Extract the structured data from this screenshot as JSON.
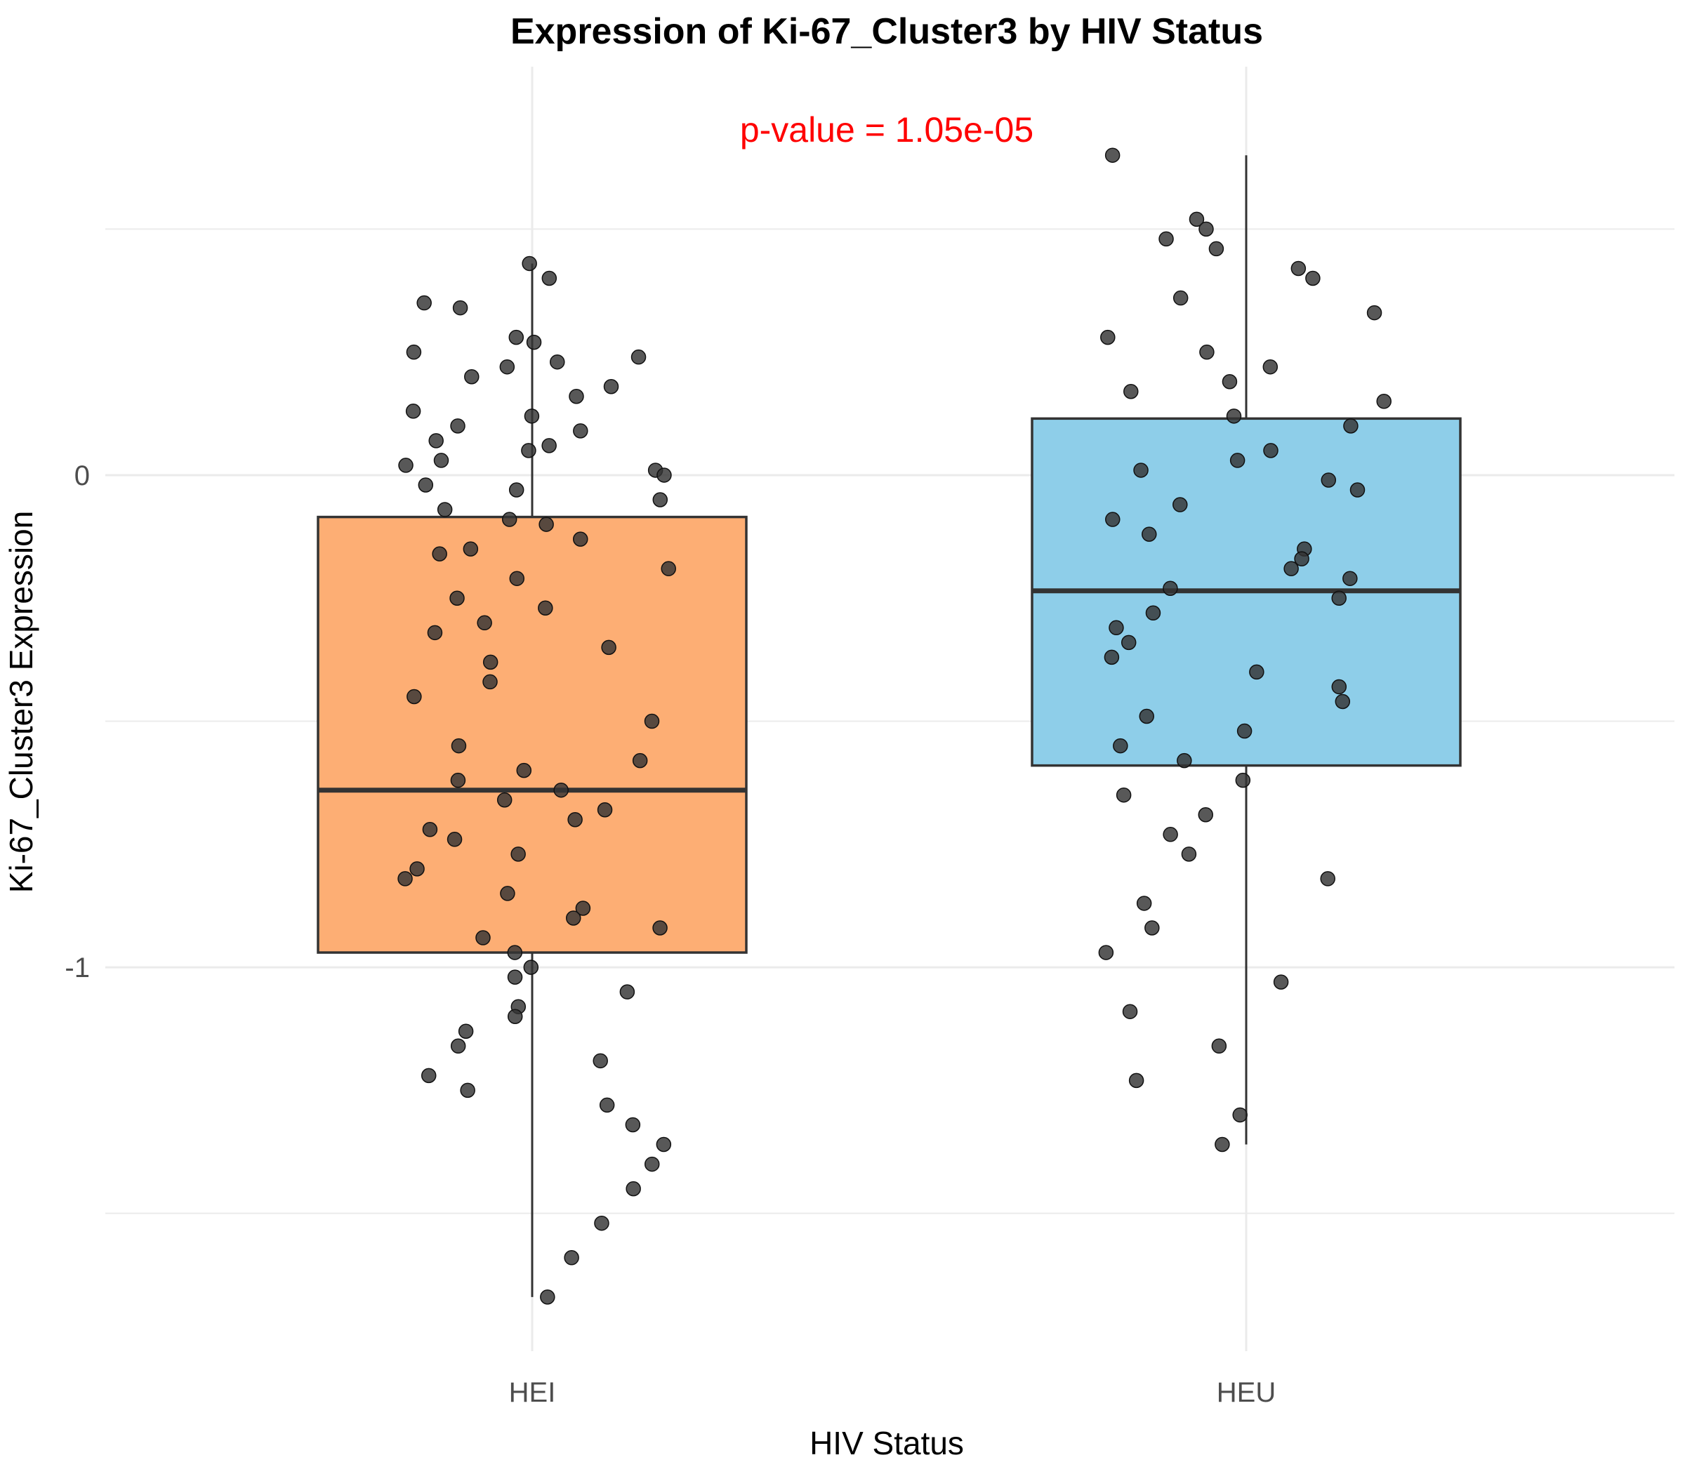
{
  "chart_data": {
    "type": "box",
    "title": "Expression of Ki-67_Cluster3 by HIV Status",
    "annotation": "p-value = 1.05e-05",
    "xlabel": "HIV Status",
    "ylabel": "Ki-67_Cluster3 Expression",
    "categories": [
      "HEI",
      "HEU"
    ],
    "yticks": [
      {
        "value": 0,
        "label": "0"
      },
      {
        "value": -1,
        "label": "-1"
      }
    ],
    "ylim": [
      -1.78,
      0.83
    ],
    "grid": true,
    "colors": {
      "HEI": "#fdae74",
      "HEU": "#8ecee9",
      "points": "#333333",
      "annotation": "#ff0000"
    },
    "boxes": [
      {
        "category": "HEI",
        "min": -1.67,
        "q1": -0.97,
        "median": -0.64,
        "q3": -0.085,
        "max": 0.43,
        "points": [
          0.43,
          0.4,
          0.35,
          0.34,
          0.28,
          0.27,
          0.25,
          0.24,
          0.23,
          0.22,
          0.2,
          0.18,
          0.16,
          0.13,
          0.12,
          0.1,
          0.09,
          0.07,
          0.06,
          0.05,
          0.03,
          0.02,
          0.01,
          0.0,
          -0.02,
          -0.03,
          -0.05,
          -0.07,
          -0.09,
          -0.1,
          -0.13,
          -0.15,
          -0.16,
          -0.19,
          -0.21,
          -0.25,
          -0.27,
          -0.3,
          -0.32,
          -0.35,
          -0.38,
          -0.42,
          -0.45,
          -0.5,
          -0.55,
          -0.58,
          -0.6,
          -0.62,
          -0.64,
          -0.66,
          -0.68,
          -0.7,
          -0.72,
          -0.74,
          -0.77,
          -0.8,
          -0.82,
          -0.85,
          -0.88,
          -0.9,
          -0.92,
          -0.94,
          -0.97,
          -1.0,
          -1.02,
          -1.05,
          -1.08,
          -1.1,
          -1.13,
          -1.16,
          -1.19,
          -1.22,
          -1.25,
          -1.28,
          -1.32,
          -1.36,
          -1.4,
          -1.45,
          -1.52,
          -1.59,
          -1.67
        ]
      },
      {
        "category": "HEU",
        "min": -1.36,
        "q1": -0.59,
        "median": -0.235,
        "q3": 0.115,
        "max": 0.65,
        "points": [
          0.65,
          0.52,
          0.5,
          0.48,
          0.46,
          0.42,
          0.4,
          0.36,
          0.33,
          0.28,
          0.25,
          0.22,
          0.19,
          0.17,
          0.15,
          0.12,
          0.1,
          0.05,
          0.03,
          0.01,
          -0.01,
          -0.03,
          -0.06,
          -0.09,
          -0.12,
          -0.15,
          -0.17,
          -0.19,
          -0.21,
          -0.23,
          -0.25,
          -0.28,
          -0.31,
          -0.34,
          -0.37,
          -0.4,
          -0.43,
          -0.46,
          -0.49,
          -0.52,
          -0.55,
          -0.58,
          -0.62,
          -0.65,
          -0.69,
          -0.73,
          -0.77,
          -0.82,
          -0.87,
          -0.92,
          -0.97,
          -1.03,
          -1.09,
          -1.16,
          -1.23,
          -1.3,
          -1.36
        ]
      }
    ]
  }
}
